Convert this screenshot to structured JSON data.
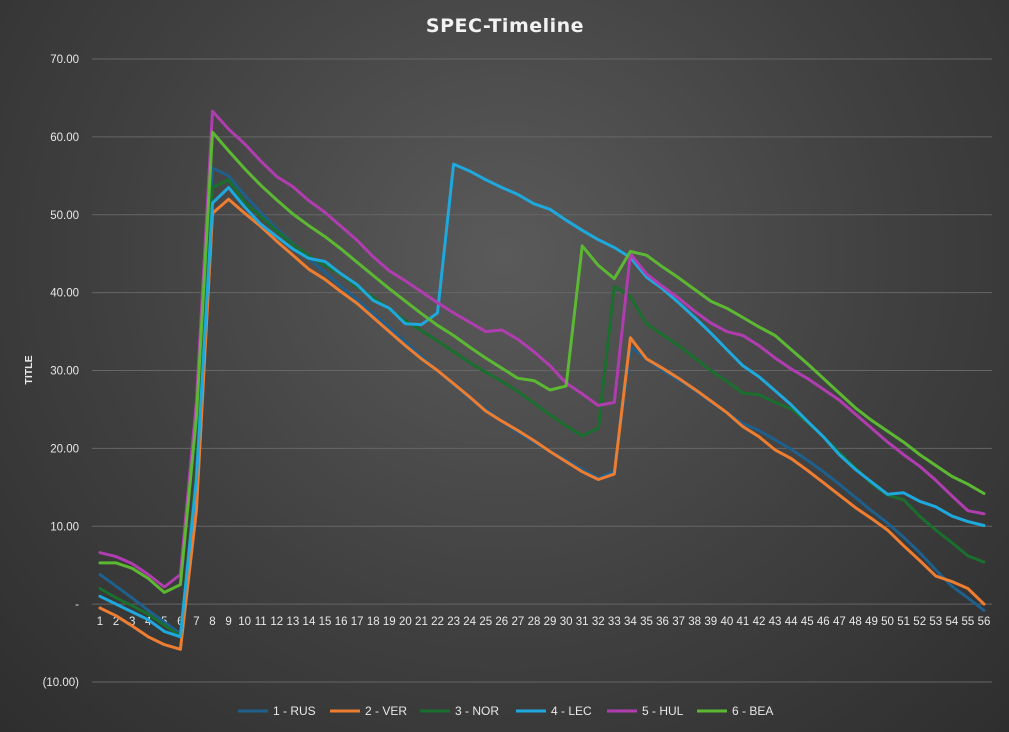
{
  "chart_data": {
    "type": "line",
    "title": "SPEC-Timeline",
    "ylabel": "TITLE",
    "xlabel": "",
    "ylim": [
      -10,
      70
    ],
    "yticks": [
      {
        "value": 70,
        "label": "70.00"
      },
      {
        "value": 60,
        "label": "60.00"
      },
      {
        "value": 50,
        "label": "50.00"
      },
      {
        "value": 40,
        "label": "40.00"
      },
      {
        "value": 30,
        "label": "30.00"
      },
      {
        "value": 20,
        "label": "20.00"
      },
      {
        "value": 10,
        "label": "10.00"
      },
      {
        "value": 0,
        "label": "-"
      },
      {
        "value": -10,
        "label": "(10.00)"
      }
    ],
    "grid": true,
    "legend_position": "bottom",
    "x": [
      "1",
      "2",
      "3",
      "4",
      "5",
      "6",
      "7",
      "8",
      "9",
      "10",
      "11",
      "12",
      "13",
      "14",
      "15",
      "16",
      "17",
      "18",
      "19",
      "20",
      "21",
      "22",
      "23",
      "24",
      "25",
      "26",
      "27",
      "28",
      "29",
      "30",
      "31",
      "32",
      "33",
      "34",
      "35",
      "36",
      "37",
      "38",
      "39",
      "40",
      "41",
      "42",
      "43",
      "44",
      "45",
      "46",
      "47",
      "48",
      "49",
      "50",
      "51",
      "52",
      "53",
      "54",
      "55",
      "56"
    ],
    "series": [
      {
        "name": "1 - RUS",
        "color": "#1f5f8b",
        "values": [
          3.8,
          2.3,
          0.8,
          -0.8,
          -2.3,
          -3.8,
          15,
          56,
          55,
          52.5,
          50.3,
          48.2,
          46.3,
          44.4,
          42.6,
          40.8,
          39.1,
          37.3,
          35.5,
          33.7,
          31.8,
          30,
          28.2,
          26.5,
          25,
          23.5,
          22.1,
          20.8,
          19.6,
          18.5,
          17.3,
          16.2,
          17,
          33,
          31.5,
          30,
          28.8,
          27.5,
          26,
          24.6,
          23.2,
          22.3,
          21.1,
          19.9,
          18.5,
          17,
          15.4,
          13.7,
          12,
          10.4,
          8.6,
          6.6,
          4.4,
          2.3,
          0.8,
          -0.8
        ]
      },
      {
        "name": "2 - VER",
        "color": "#ed7d31",
        "values": [
          -0.5,
          -1.5,
          -2.8,
          -4.2,
          -5.2,
          -5.8,
          12,
          50.2,
          52,
          50.2,
          48.5,
          46.6,
          44.8,
          43,
          41.7,
          40.1,
          38.6,
          36.8,
          35,
          33.2,
          31.5,
          30,
          28.3,
          26.6,
          24.8,
          23.5,
          22.3,
          21,
          19.6,
          18.3,
          17,
          16,
          16.7,
          34.2,
          31.5,
          30.3,
          29,
          27.6,
          26.1,
          24.6,
          22.8,
          21.5,
          19.8,
          18.7,
          17.2,
          15.6,
          14,
          12.4,
          11,
          9.5,
          7.5,
          5.6,
          3.6,
          2.9,
          2,
          0
        ]
      },
      {
        "name": "3 - NOR",
        "color": "#1a6e2e",
        "values": [
          2,
          0.8,
          -0.2,
          -1.3,
          -2.7,
          -4.1,
          17,
          53.5,
          54.5,
          51.6,
          49.8,
          47.9,
          46.2,
          44.7,
          43.5,
          42.3,
          40.7,
          39.4,
          37.9,
          36.4,
          35.1,
          33.8,
          32.4,
          31,
          29.8,
          28.6,
          27.3,
          25.8,
          24.3,
          22.9,
          21.6,
          22.6,
          40.8,
          39.5,
          36,
          34.6,
          33.2,
          31.6,
          30,
          28.6,
          27.1,
          26.9,
          25.9,
          25.1,
          23.4,
          21.5,
          19.5,
          17.5,
          15.5,
          14,
          13.4,
          11.3,
          9.5,
          7.9,
          6.2,
          5.4
        ]
      },
      {
        "name": "4 - LEC",
        "color": "#1fa8dc",
        "values": [
          1,
          0,
          -1,
          -2,
          -3.5,
          -4.2,
          16,
          51.5,
          53.5,
          51,
          48.8,
          47.2,
          45.6,
          44.4,
          44,
          42.4,
          41,
          39,
          38,
          36,
          35.9,
          37.4,
          56.5,
          55.6,
          54.5,
          53.5,
          52.6,
          51.4,
          50.7,
          49.3,
          48,
          46.8,
          45.8,
          44.5,
          42,
          40.5,
          38.7,
          36.8,
          34.8,
          32.7,
          30.6,
          29.2,
          27.4,
          25.6,
          23.5,
          21.5,
          19.2,
          17.3,
          15.7,
          14.1,
          14.3,
          13.2,
          12.5,
          11.3,
          10.6,
          10.1
        ]
      },
      {
        "name": "5 - HUL",
        "color": "#b03db0",
        "values": [
          6.6,
          6.1,
          5.2,
          3.8,
          2.2,
          3.8,
          26,
          63.3,
          61,
          59.1,
          56.9,
          54.9,
          53.6,
          51.8,
          50.3,
          48.5,
          46.7,
          44.6,
          42.8,
          41.5,
          40.1,
          38.7,
          37.4,
          36.2,
          35,
          35.2,
          34,
          32.4,
          30.6,
          28.4,
          27,
          25.5,
          25.9,
          45,
          42.4,
          40.8,
          39.3,
          37.6,
          36.1,
          35,
          34.5,
          33.2,
          31.6,
          30.2,
          29,
          27.6,
          26.2,
          24.4,
          22.6,
          20.8,
          19.2,
          17.7,
          15.9,
          13.9,
          12,
          11.6
        ]
      },
      {
        "name": "6 - BEA",
        "color": "#5cb833",
        "values": [
          5.3,
          5.3,
          4.6,
          3.3,
          1.5,
          2.5,
          24,
          60.6,
          58.2,
          55.9,
          53.8,
          51.9,
          50.1,
          48.6,
          47.2,
          45.6,
          43.9,
          42.2,
          40.5,
          38.9,
          37.3,
          35.8,
          34.5,
          33,
          31.6,
          30.3,
          29,
          28.7,
          27.5,
          28,
          46,
          43.5,
          41.8,
          45.3,
          44.8,
          43.3,
          41.9,
          40.4,
          38.9,
          38,
          36.8,
          35.6,
          34.5,
          32.7,
          30.9,
          29,
          27.1,
          25.2,
          23.6,
          22.2,
          20.8,
          19.2,
          17.8,
          16.4,
          15.4,
          14.2
        ]
      }
    ]
  }
}
